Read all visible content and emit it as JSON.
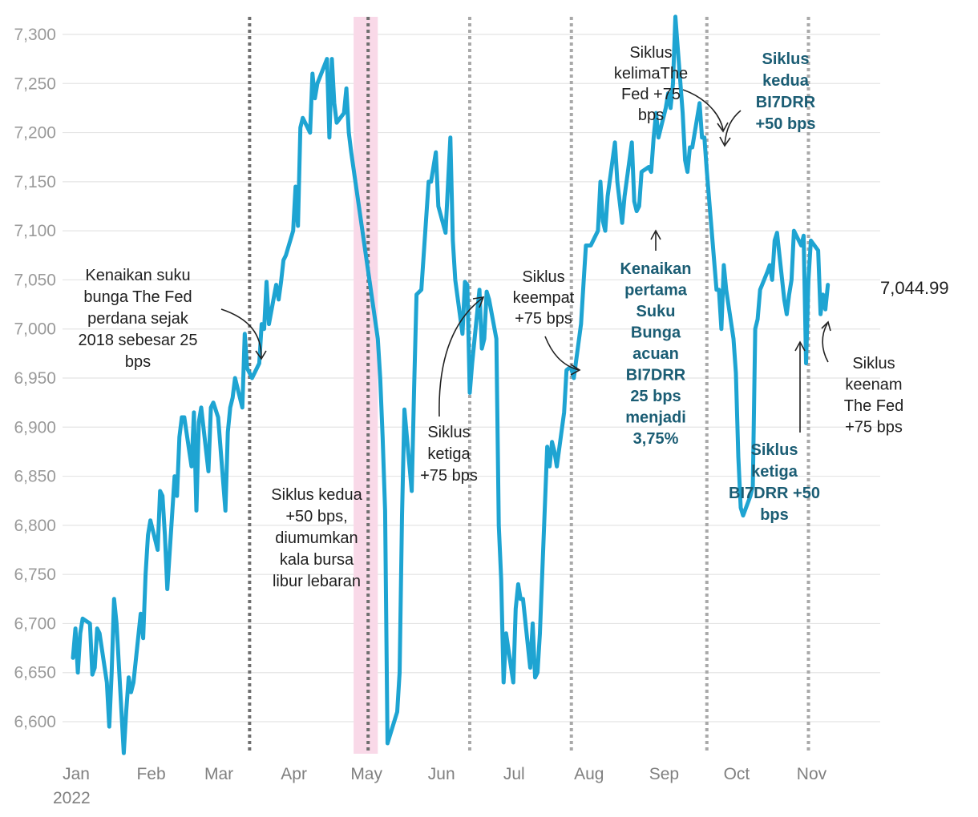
{
  "chart_data": {
    "type": "line",
    "title": "",
    "xlabel": "",
    "ylabel": "",
    "ylim": [
      6570,
      7320
    ],
    "yticks": [
      6600,
      6650,
      6700,
      6750,
      6800,
      6850,
      6900,
      6950,
      7000,
      7050,
      7100,
      7150,
      7200,
      7250,
      7300
    ],
    "ytick_labels": [
      "6,600",
      "6,650",
      "6,700",
      "6,750",
      "6,800",
      "6,850",
      "6,900",
      "6,950",
      "7,000",
      "7,050",
      "7,100",
      "7,150",
      "7,200",
      "7,250",
      "7,300"
    ],
    "xlim": [
      "2022-01-01",
      "2022-11-30"
    ],
    "xticks": [
      "2022-01-01",
      "2022-02-01",
      "2022-03-01",
      "2022-04-01",
      "2022-05-01",
      "2022-06-01",
      "2022-07-01",
      "2022-08-01",
      "2022-09-01",
      "2022-10-01",
      "2022-11-01"
    ],
    "xtick_labels": [
      "Jan",
      "Feb",
      "Mar",
      "Apr",
      "May",
      "Jun",
      "Jul",
      "Aug",
      "Sep",
      "Oct",
      "Nov"
    ],
    "year_label": "2022",
    "grid": true,
    "line_color": "#1ea4d2",
    "series": [
      {
        "name": "",
        "points": [
          [
            "2022-01-03",
            6665
          ],
          [
            "2022-01-04",
            6695
          ],
          [
            "2022-01-05",
            6650
          ],
          [
            "2022-01-06",
            6690
          ],
          [
            "2022-01-07",
            6705
          ],
          [
            "2022-01-10",
            6700
          ],
          [
            "2022-01-11",
            6648
          ],
          [
            "2022-01-12",
            6655
          ],
          [
            "2022-01-13",
            6695
          ],
          [
            "2022-01-14",
            6690
          ],
          [
            "2022-01-17",
            6640
          ],
          [
            "2022-01-18",
            6595
          ],
          [
            "2022-01-19",
            6650
          ],
          [
            "2022-01-20",
            6725
          ],
          [
            "2022-01-21",
            6700
          ],
          [
            "2022-01-24",
            6568
          ],
          [
            "2022-01-25",
            6610
          ],
          [
            "2022-01-26",
            6645
          ],
          [
            "2022-01-27",
            6630
          ],
          [
            "2022-01-28",
            6640
          ],
          [
            "2022-01-31",
            6710
          ],
          [
            "2022-02-01",
            6685
          ],
          [
            "2022-02-02",
            6750
          ],
          [
            "2022-02-03",
            6790
          ],
          [
            "2022-02-04",
            6805
          ],
          [
            "2022-02-07",
            6775
          ],
          [
            "2022-02-08",
            6835
          ],
          [
            "2022-02-09",
            6830
          ],
          [
            "2022-02-10",
            6790
          ],
          [
            "2022-02-11",
            6735
          ],
          [
            "2022-02-14",
            6850
          ],
          [
            "2022-02-15",
            6830
          ],
          [
            "2022-02-16",
            6890
          ],
          [
            "2022-02-17",
            6910
          ],
          [
            "2022-02-18",
            6910
          ],
          [
            "2022-02-21",
            6860
          ],
          [
            "2022-02-22",
            6915
          ],
          [
            "2022-02-23",
            6815
          ],
          [
            "2022-02-24",
            6905
          ],
          [
            "2022-02-25",
            6920
          ],
          [
            "2022-02-28",
            6855
          ],
          [
            "2022-03-01",
            6920
          ],
          [
            "2022-03-02",
            6925
          ],
          [
            "2022-03-04",
            6910
          ],
          [
            "2022-03-07",
            6815
          ],
          [
            "2022-03-08",
            6895
          ],
          [
            "2022-03-09",
            6920
          ],
          [
            "2022-03-10",
            6930
          ],
          [
            "2022-03-11",
            6950
          ],
          [
            "2022-03-14",
            6920
          ],
          [
            "2022-03-15",
            6995
          ],
          [
            "2022-03-16",
            6960
          ],
          [
            "2022-03-17",
            6955
          ],
          [
            "2022-03-18",
            6950
          ],
          [
            "2022-03-21",
            6965
          ],
          [
            "2022-03-22",
            7005
          ],
          [
            "2022-03-23",
            7000
          ],
          [
            "2022-03-24",
            7048
          ],
          [
            "2022-03-25",
            7005
          ],
          [
            "2022-03-28",
            7045
          ],
          [
            "2022-03-29",
            7030
          ],
          [
            "2022-03-30",
            7048
          ],
          [
            "2022-03-31",
            7070
          ],
          [
            "2022-04-01",
            7075
          ],
          [
            "2022-04-04",
            7100
          ],
          [
            "2022-04-05",
            7145
          ],
          [
            "2022-04-06",
            7105
          ],
          [
            "2022-04-07",
            7205
          ],
          [
            "2022-04-08",
            7215
          ],
          [
            "2022-04-11",
            7200
          ],
          [
            "2022-04-12",
            7260
          ],
          [
            "2022-04-13",
            7235
          ],
          [
            "2022-04-14",
            7250
          ],
          [
            "2022-04-18",
            7275
          ],
          [
            "2022-04-19",
            7195
          ],
          [
            "2022-04-20",
            7275
          ],
          [
            "2022-04-21",
            7230
          ],
          [
            "2022-04-22",
            7210
          ],
          [
            "2022-04-25",
            7220
          ],
          [
            "2022-04-26",
            7245
          ],
          [
            "2022-04-27",
            7200
          ],
          [
            "2022-04-28",
            7180
          ],
          [
            "2022-05-09",
            6990
          ],
          [
            "2022-05-10",
            6950
          ],
          [
            "2022-05-11",
            6890
          ],
          [
            "2022-05-12",
            6815
          ],
          [
            "2022-05-13",
            6578
          ],
          [
            "2022-05-17",
            6610
          ],
          [
            "2022-05-18",
            6650
          ],
          [
            "2022-05-19",
            6810
          ],
          [
            "2022-05-20",
            6918
          ],
          [
            "2022-05-23",
            6835
          ],
          [
            "2022-05-24",
            6940
          ],
          [
            "2022-05-25",
            7035
          ],
          [
            "2022-05-27",
            7040
          ],
          [
            "2022-05-30",
            7150
          ],
          [
            "2022-05-31",
            7150
          ],
          [
            "2022-06-02",
            7180
          ],
          [
            "2022-06-03",
            7125
          ],
          [
            "2022-06-06",
            7098
          ],
          [
            "2022-06-08",
            7195
          ],
          [
            "2022-06-09",
            7090
          ],
          [
            "2022-06-10",
            7050
          ],
          [
            "2022-06-13",
            6995
          ],
          [
            "2022-06-14",
            7048
          ],
          [
            "2022-06-15",
            7045
          ],
          [
            "2022-06-16",
            6935
          ],
          [
            "2022-06-17",
            6965
          ],
          [
            "2022-06-20",
            7040
          ],
          [
            "2022-06-21",
            6980
          ],
          [
            "2022-06-22",
            6990
          ],
          [
            "2022-06-23",
            7038
          ],
          [
            "2022-06-24",
            7030
          ],
          [
            "2022-06-27",
            6990
          ],
          [
            "2022-06-28",
            6800
          ],
          [
            "2022-06-29",
            6745
          ],
          [
            "2022-06-30",
            6640
          ],
          [
            "2022-07-01",
            6690
          ],
          [
            "2022-07-04",
            6640
          ],
          [
            "2022-07-05",
            6715
          ],
          [
            "2022-07-06",
            6740
          ],
          [
            "2022-07-07",
            6725
          ],
          [
            "2022-07-08",
            6725
          ],
          [
            "2022-07-11",
            6655
          ],
          [
            "2022-07-12",
            6700
          ],
          [
            "2022-07-13",
            6645
          ],
          [
            "2022-07-14",
            6650
          ],
          [
            "2022-07-15",
            6690
          ],
          [
            "2022-07-18",
            6880
          ],
          [
            "2022-07-19",
            6860
          ],
          [
            "2022-07-20",
            6885
          ],
          [
            "2022-07-21",
            6875
          ],
          [
            "2022-07-22",
            6860
          ],
          [
            "2022-07-25",
            6915
          ],
          [
            "2022-07-26",
            6958
          ],
          [
            "2022-07-27",
            6960
          ],
          [
            "2022-07-28",
            6960
          ],
          [
            "2022-07-29",
            6950
          ],
          [
            "2022-08-01",
            7005
          ],
          [
            "2022-08-02",
            7045
          ],
          [
            "2022-08-03",
            7085
          ],
          [
            "2022-08-04",
            7085
          ],
          [
            "2022-08-05",
            7085
          ],
          [
            "2022-08-08",
            7100
          ],
          [
            "2022-08-09",
            7150
          ],
          [
            "2022-08-10",
            7110
          ],
          [
            "2022-08-11",
            7100
          ],
          [
            "2022-08-12",
            7135
          ],
          [
            "2022-08-15",
            7190
          ],
          [
            "2022-08-16",
            7150
          ],
          [
            "2022-08-18",
            7108
          ],
          [
            "2022-08-19",
            7135
          ],
          [
            "2022-08-22",
            7190
          ],
          [
            "2022-08-23",
            7130
          ],
          [
            "2022-08-24",
            7120
          ],
          [
            "2022-08-25",
            7125
          ],
          [
            "2022-08-26",
            7160
          ],
          [
            "2022-08-29",
            7165
          ],
          [
            "2022-08-30",
            7160
          ],
          [
            "2022-08-31",
            7195
          ],
          [
            "2022-09-01",
            7220
          ],
          [
            "2022-09-02",
            7195
          ],
          [
            "2022-09-05",
            7225
          ],
          [
            "2022-09-06",
            7240
          ],
          [
            "2022-09-07",
            7225
          ],
          [
            "2022-09-08",
            7250
          ],
          [
            "2022-09-09",
            7318
          ],
          [
            "2022-09-12",
            7220
          ],
          [
            "2022-09-13",
            7172
          ],
          [
            "2022-09-14",
            7160
          ],
          [
            "2022-09-15",
            7185
          ],
          [
            "2022-09-16",
            7185
          ],
          [
            "2022-09-19",
            7230
          ],
          [
            "2022-09-20",
            7195
          ],
          [
            "2022-09-21",
            7195
          ],
          [
            "2022-09-22",
            7160
          ],
          [
            "2022-09-23",
            7130
          ],
          [
            "2022-09-26",
            7040
          ],
          [
            "2022-09-27",
            7040
          ],
          [
            "2022-09-28",
            7000
          ],
          [
            "2022-09-29",
            7065
          ],
          [
            "2022-09-30",
            7040
          ],
          [
            "2022-10-03",
            6990
          ],
          [
            "2022-10-04",
            6955
          ],
          [
            "2022-10-05",
            6870
          ],
          [
            "2022-10-06",
            6818
          ],
          [
            "2022-10-07",
            6810
          ],
          [
            "2022-10-10",
            6830
          ],
          [
            "2022-10-11",
            6840
          ],
          [
            "2022-10-12",
            7000
          ],
          [
            "2022-10-13",
            7010
          ],
          [
            "2022-10-14",
            7040
          ],
          [
            "2022-10-17",
            7058
          ],
          [
            "2022-10-18",
            7065
          ],
          [
            "2022-10-19",
            7050
          ],
          [
            "2022-10-20",
            7090
          ],
          [
            "2022-10-21",
            7098
          ],
          [
            "2022-10-24",
            7030
          ],
          [
            "2022-10-25",
            7015
          ],
          [
            "2022-10-26",
            7035
          ],
          [
            "2022-10-27",
            7050
          ],
          [
            "2022-10-28",
            7100
          ],
          [
            "2022-10-31",
            7085
          ],
          [
            "2022-11-01",
            7095
          ],
          [
            "2022-11-02",
            6965
          ],
          [
            "2022-11-03",
            7050
          ],
          [
            "2022-11-04",
            7090
          ],
          [
            "2022-11-07",
            7080
          ],
          [
            "2022-11-08",
            7015
          ],
          [
            "2022-11-09",
            7035
          ],
          [
            "2022-11-10",
            7020
          ],
          [
            "2022-11-11",
            7044.99
          ]
        ]
      }
    ],
    "end_value_label": "7,044.99",
    "event_lines": [
      {
        "date": "2022-03-17",
        "style": "dotted-dark"
      },
      {
        "date": "2022-05-05",
        "style": "dotted-dark"
      },
      {
        "date": "2022-06-16",
        "style": "dotted-light"
      },
      {
        "date": "2022-07-28",
        "style": "dotted-light"
      },
      {
        "date": "2022-09-22",
        "style": "dotted-light"
      },
      {
        "date": "2022-11-03",
        "style": "dotted-light"
      }
    ],
    "shaded_range": {
      "start": "2022-04-29",
      "end": "2022-05-09",
      "color": "#f9d9e8"
    },
    "annotations": [
      {
        "id": "fed1",
        "style": "normal",
        "lines": [
          "Kenaikan suku",
          "bunga The Fed",
          "perdana sejak",
          "2018 sebesar 25",
          "bps"
        ]
      },
      {
        "id": "fed2",
        "style": "normal",
        "lines": [
          "Siklus kedua",
          "+50 bps,",
          "diumumkan",
          "kala bursa",
          "libur lebaran"
        ]
      },
      {
        "id": "fed3",
        "style": "normal",
        "lines": [
          "Siklus",
          "ketiga",
          "+75 bps"
        ]
      },
      {
        "id": "fed4",
        "style": "normal",
        "lines": [
          "Siklus",
          "keempat",
          "+75 bps"
        ]
      },
      {
        "id": "fed5",
        "style": "normal",
        "lines": [
          "Siklus",
          "kelimaThe",
          "Fed +75",
          "bps"
        ]
      },
      {
        "id": "bi1",
        "style": "bold",
        "lines": [
          "Kenaikan",
          "pertama",
          "Suku",
          "Bunga",
          "acuan",
          "BI7DRR",
          "25 bps",
          "menjadi",
          "3,75%"
        ]
      },
      {
        "id": "bi2",
        "style": "bold",
        "lines": [
          "Siklus",
          "kedua",
          "BI7DRR",
          "+50 bps"
        ]
      },
      {
        "id": "bi3",
        "style": "bold",
        "lines": [
          "Siklus",
          "ketiga",
          "BI7DRR +50",
          "bps"
        ]
      },
      {
        "id": "fed6",
        "style": "normal",
        "lines": [
          "Siklus",
          "keenam",
          "The Fed",
          "+75 bps"
        ]
      }
    ]
  }
}
